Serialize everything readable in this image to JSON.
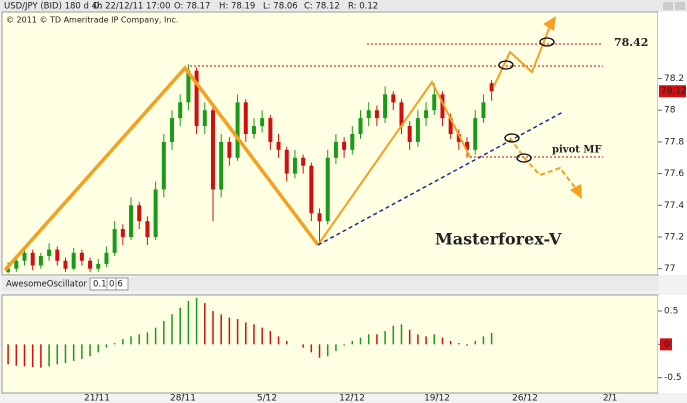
{
  "header": {
    "symbol": "USD/JPY (BID) 180 d 4h",
    "date": "D: 22/12/11 17:00",
    "open": "O: 78.17",
    "high": "H: 78.19",
    "low": "L: 78.06",
    "close": "C: 78.12",
    "range": "R: 0.12",
    "copyright": "© 2011 © TD Ameritrade IP Company, Inc."
  },
  "annotations": {
    "brand": "Masterforex-V",
    "target": "78.42",
    "pivot": "pivot MF"
  },
  "chart_data": [
    {
      "type": "candlestick",
      "last_price_label": "78.12",
      "up_color": "#1a9a1a",
      "down_color": "#d01010",
      "xlim": [
        -0.5,
        79.3
      ],
      "xticks": [
        {
          "value": 10.85,
          "label": "21/11"
        },
        {
          "value": 21.34,
          "label": "28/11"
        },
        {
          "value": 31.59,
          "label": "5/12"
        },
        {
          "value": 41.97,
          "label": "12/12"
        },
        {
          "value": 52.34,
          "label": "19/12"
        },
        {
          "value": 63.08,
          "label": "26/12"
        },
        {
          "value": 73.45,
          "label": "2/1"
        }
      ],
      "ylim": [
        76.96,
        78.62
      ],
      "yticks": [
        77,
        77.2,
        77.4,
        77.6,
        77.8,
        78,
        78.2
      ],
      "ohlc": [
        [
          76.98,
          77.04,
          76.97,
          77.0
        ],
        [
          77.0,
          77.08,
          76.98,
          77.05
        ],
        [
          77.05,
          77.14,
          77.02,
          77.1
        ],
        [
          77.1,
          77.12,
          76.99,
          77.02
        ],
        [
          77.02,
          77.1,
          77.0,
          77.08
        ],
        [
          77.08,
          77.16,
          77.05,
          77.12
        ],
        [
          77.12,
          77.14,
          77.02,
          77.05
        ],
        [
          77.05,
          77.07,
          76.98,
          77.0
        ],
        [
          77.0,
          77.13,
          76.99,
          77.1
        ],
        [
          77.1,
          77.12,
          77.02,
          77.05
        ],
        [
          77.05,
          77.07,
          76.98,
          77.0
        ],
        [
          77.0,
          77.06,
          76.98,
          77.03
        ],
        [
          77.03,
          77.14,
          77.01,
          77.1
        ],
        [
          77.1,
          77.3,
          77.08,
          77.25
        ],
        [
          77.25,
          77.28,
          77.15,
          77.2
        ],
        [
          77.2,
          77.45,
          77.18,
          77.4
        ],
        [
          77.4,
          77.42,
          77.25,
          77.3
        ],
        [
          77.3,
          77.33,
          77.15,
          77.2
        ],
        [
          77.2,
          77.55,
          77.18,
          77.5
        ],
        [
          77.5,
          77.85,
          77.45,
          77.8
        ],
        [
          77.8,
          78.0,
          77.75,
          77.95
        ],
        [
          77.95,
          78.1,
          77.9,
          78.05
        ],
        [
          78.05,
          78.29,
          78.0,
          78.25
        ],
        [
          78.25,
          78.27,
          77.85,
          77.9
        ],
        [
          77.9,
          78.05,
          77.85,
          78.0
        ],
        [
          78.0,
          78.02,
          77.3,
          77.5
        ],
        [
          77.5,
          77.85,
          77.45,
          77.8
        ],
        [
          77.8,
          77.83,
          77.65,
          77.7
        ],
        [
          77.7,
          78.1,
          77.68,
          78.05
        ],
        [
          78.05,
          78.07,
          77.8,
          77.85
        ],
        [
          77.85,
          77.95,
          77.82,
          77.9
        ],
        [
          77.9,
          78.0,
          77.86,
          77.95
        ],
        [
          77.95,
          77.97,
          77.75,
          77.8
        ],
        [
          77.8,
          77.85,
          77.7,
          77.75
        ],
        [
          77.75,
          77.77,
          77.55,
          77.6
        ],
        [
          77.6,
          77.75,
          77.57,
          77.7
        ],
        [
          77.7,
          77.72,
          77.6,
          77.65
        ],
        [
          77.65,
          77.67,
          77.3,
          77.35
        ],
        [
          77.35,
          77.38,
          77.15,
          77.3
        ],
        [
          77.3,
          77.75,
          77.28,
          77.7
        ],
        [
          77.7,
          77.85,
          77.66,
          77.8
        ],
        [
          77.8,
          77.83,
          77.7,
          77.75
        ],
        [
          77.75,
          77.9,
          77.72,
          77.85
        ],
        [
          77.85,
          78.0,
          77.82,
          77.95
        ],
        [
          77.95,
          78.05,
          77.9,
          78.0
        ],
        [
          78.0,
          78.03,
          77.9,
          77.95
        ],
        [
          77.95,
          78.15,
          77.92,
          78.1
        ],
        [
          78.1,
          78.12,
          78.0,
          78.05
        ],
        [
          78.05,
          78.07,
          77.85,
          77.9
        ],
        [
          77.9,
          77.93,
          77.75,
          77.8
        ],
        [
          77.8,
          78.0,
          77.77,
          77.95
        ],
        [
          77.95,
          78.05,
          77.9,
          78.0
        ],
        [
          78.0,
          78.17,
          77.97,
          78.1
        ],
        [
          78.1,
          78.12,
          77.9,
          77.95
        ],
        [
          77.95,
          77.98,
          77.82,
          77.85
        ],
        [
          77.85,
          77.88,
          77.75,
          77.8
        ],
        [
          77.8,
          77.83,
          77.7,
          77.75
        ],
        [
          77.75,
          78.0,
          77.72,
          77.95
        ],
        [
          77.95,
          78.1,
          77.92,
          78.05
        ],
        [
          78.17,
          78.19,
          78.06,
          78.12
        ]
      ]
    },
    {
      "type": "histogram_oscillator",
      "name": "AwesomeOscillator",
      "current": "0.1696",
      "param": "0",
      "up_color": "#1a9a1a",
      "down_color": "#d01010",
      "ylim": [
        -0.73,
        0.74
      ],
      "yticks": [
        -0.5,
        0,
        0.5
      ],
      "values": [
        -0.3,
        -0.32,
        -0.33,
        -0.34,
        -0.35,
        -0.33,
        -0.3,
        -0.28,
        -0.25,
        -0.22,
        -0.18,
        -0.12,
        -0.05,
        0.02,
        0.08,
        0.12,
        0.15,
        0.18,
        0.25,
        0.35,
        0.45,
        0.55,
        0.65,
        0.7,
        0.62,
        0.5,
        0.45,
        0.4,
        0.38,
        0.33,
        0.3,
        0.25,
        0.2,
        0.12,
        0.05,
        0.0,
        -0.05,
        -0.12,
        -0.2,
        -0.18,
        -0.1,
        -0.02,
        0.05,
        0.1,
        0.15,
        0.15,
        0.2,
        0.28,
        0.3,
        0.22,
        0.15,
        0.12,
        0.15,
        0.1,
        0.05,
        0.02,
        -0.02,
        0.05,
        0.12,
        0.17
      ]
    }
  ]
}
